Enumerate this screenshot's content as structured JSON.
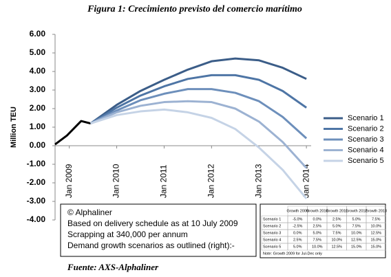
{
  "chart_data": {
    "type": "line",
    "title": "Figura 1: Crecimiento previsto del comercio marítimo",
    "ylabel": "Million TEU",
    "xlim": [
      2008.7,
      2014.1
    ],
    "xticks": [
      {
        "value": 2009,
        "label": "Jan 2009"
      },
      {
        "value": 2010,
        "label": "Jan 2010"
      },
      {
        "value": 2011,
        "label": "Jan 2011"
      },
      {
        "value": 2012,
        "label": "Jan 2012"
      },
      {
        "value": 2013,
        "label": "Jan 2013"
      },
      {
        "value": 2014,
        "label": "Jan 2014"
      }
    ],
    "ylim": [
      -4,
      6
    ],
    "yticks": [
      {
        "value": 6,
        "label": "6.00"
      },
      {
        "value": 5,
        "label": "5.00"
      },
      {
        "value": 4,
        "label": "4.00"
      },
      {
        "value": 3,
        "label": "3.00"
      },
      {
        "value": 2,
        "label": "2.00"
      },
      {
        "value": 1,
        "label": "1.00"
      },
      {
        "value": 0,
        "label": "0.00"
      },
      {
        "value": -1,
        "label": "-1.00"
      },
      {
        "value": -2,
        "label": "-2.00"
      },
      {
        "value": -3,
        "label": "-3.00"
      },
      {
        "value": -4,
        "label": "-4.00"
      }
    ],
    "grid": false,
    "legend": "right",
    "series": [
      {
        "color": "#000000",
        "x": [
          2008.7,
          2008.95,
          2009.25,
          2009.45
        ],
        "values": [
          0.07,
          0.55,
          1.33,
          1.2
        ]
      },
      {
        "name": "Scenario 1",
        "color": "#3b5d88",
        "x": [
          2009.45,
          2010,
          2010.5,
          2011,
          2011.5,
          2012,
          2012.5,
          2013,
          2013.5,
          2014
        ],
        "values": [
          1.2,
          2.2,
          2.95,
          3.55,
          4.1,
          4.55,
          4.7,
          4.6,
          4.2,
          3.6
        ]
      },
      {
        "name": "Scenario 2",
        "color": "#4e75a5",
        "x": [
          2009.45,
          2010,
          2010.5,
          2011,
          2011.5,
          2012,
          2012.5,
          2013,
          2013.5,
          2014
        ],
        "values": [
          1.2,
          2.05,
          2.7,
          3.2,
          3.6,
          3.8,
          3.8,
          3.55,
          2.95,
          2.05
        ]
      },
      {
        "name": "Scenario 3",
        "color": "#6d8fbb",
        "x": [
          2009.45,
          2010,
          2010.5,
          2011,
          2011.5,
          2012,
          2012.5,
          2013,
          2013.5,
          2014
        ],
        "values": [
          1.2,
          1.9,
          2.45,
          2.8,
          3.05,
          3.05,
          2.85,
          2.4,
          1.55,
          0.4
        ]
      },
      {
        "name": "Scenario 4",
        "color": "#9cb2d2",
        "x": [
          2009.45,
          2010,
          2010.5,
          2011,
          2011.5,
          2012,
          2012.5,
          2013,
          2013.5,
          2014
        ],
        "values": [
          1.2,
          1.8,
          2.15,
          2.35,
          2.4,
          2.35,
          2.0,
          1.3,
          0.2,
          -1.2
        ]
      },
      {
        "name": "Scenario 5",
        "color": "#c5d3e6",
        "x": [
          2009.45,
          2010,
          2010.5,
          2011,
          2011.5,
          2012,
          2012.5,
          2013,
          2013.5,
          2014
        ],
        "values": [
          1.2,
          1.65,
          1.85,
          1.95,
          1.8,
          1.5,
          0.9,
          -0.1,
          -1.3,
          -2.85
        ]
      }
    ]
  },
  "notes": [
    "© Alphaliner",
    "Based on delivery schedule as at 10 July 2009",
    "Scrapping at 340,000 per annum",
    "Demand growth scenarios as outlined (right):-"
  ],
  "table": {
    "header": [
      "Growth 2009",
      "Growth 2010",
      "Growth 2011",
      "Growth 2012",
      "Growth 2013"
    ],
    "rows": [
      [
        "Scenario 1",
        "-5.0%",
        "0.0%",
        "2.5%",
        "5.0%",
        "7.5%"
      ],
      [
        "Scenario 2",
        "-2.5%",
        "2.5%",
        "5.0%",
        "7.5%",
        "10.0%"
      ],
      [
        "Scenario 3",
        "0.0%",
        "5.0%",
        "7.5%",
        "10.0%",
        "12.5%"
      ],
      [
        "Scenario 4",
        "2.5%",
        "7.5%",
        "10.0%",
        "12.5%",
        "15.0%"
      ],
      [
        "Scenario 5",
        "5.0%",
        "10.0%",
        "12.5%",
        "15.0%",
        "15.0%"
      ]
    ],
    "note": "Note: Growth 2009 for Jul-Dec only"
  },
  "source": "Fuente: AXS-Alphaliner"
}
